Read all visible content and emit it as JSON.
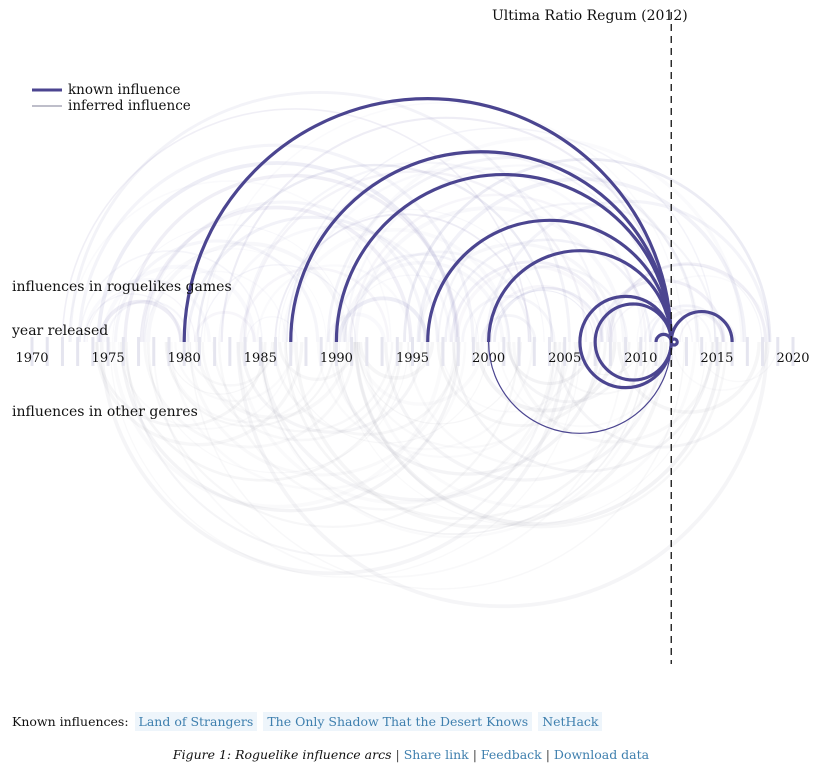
{
  "highlight": {
    "label": "Ultima Ratio Regum (2012)"
  },
  "legend": {
    "known": "known influence",
    "inferred": "inferred influence"
  },
  "labels": {
    "roguelike": "influences in roguelikes games",
    "year": "year released",
    "other": "influences in other genres"
  },
  "known_influences": {
    "label": "Known influences:",
    "items": [
      "Land of Strangers",
      "The Only Shadow That the Desert Knows",
      "NetHack"
    ]
  },
  "caption": {
    "title": "Figure 1: Roguelike influence arcs",
    "links": [
      "Share link",
      "Feedback",
      "Download data"
    ]
  },
  "colors": {
    "known": "#4b4590",
    "inferred": "#8a86bd",
    "link": "#3e7fae"
  },
  "chart_data": {
    "type": "arc",
    "x_range": [
      1970,
      2020
    ],
    "x_ticks": [
      1970,
      1975,
      1980,
      1985,
      1990,
      1995,
      2000,
      2005,
      2010,
      2015,
      2020
    ],
    "focus_year": 2012,
    "known_influences": {
      "roguelike": [
        [
          1980,
          2012
        ],
        [
          1987,
          2012
        ],
        [
          1990,
          2012
        ],
        [
          1996,
          2012
        ],
        [
          2000,
          2012
        ],
        [
          2006,
          2012
        ],
        [
          2007,
          2012
        ],
        [
          2011,
          2012
        ],
        [
          2012,
          2016
        ]
      ],
      "other_genres": [
        [
          2000,
          2012
        ],
        [
          2006,
          2012
        ],
        [
          2007,
          2012
        ],
        [
          2012,
          2012
        ]
      ]
    }
  }
}
